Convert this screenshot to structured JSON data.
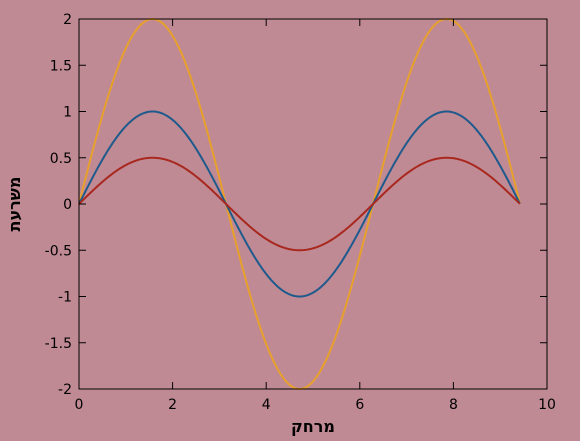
{
  "chart_data": {
    "type": "line",
    "title": "",
    "xlabel": "מרחק",
    "ylabel": "משרעת",
    "xlim": [
      0,
      10
    ],
    "ylim": [
      -2,
      2
    ],
    "xticks": [
      0,
      2,
      4,
      6,
      8,
      10
    ],
    "yticks": [
      -2,
      -1.5,
      -1,
      -0.5,
      0,
      0.5,
      1,
      1.5,
      2
    ],
    "xtick_labels": [
      "0",
      "2",
      "4",
      "6",
      "8",
      "10"
    ],
    "ytick_labels": [
      "-2",
      "-1.5",
      "-1",
      "-0.5",
      "0",
      "0.5",
      "1",
      "1.5",
      "2"
    ],
    "grid": false,
    "legend": false,
    "x_range": [
      0,
      9.42
    ],
    "series": [
      {
        "function": "sin",
        "amplitude": 2,
        "color": "#e8a02c"
      },
      {
        "function": "sin",
        "amplitude": 1,
        "color": "#1e5a8c"
      },
      {
        "function": "sin",
        "amplitude": 0.5,
        "color": "#a8281e"
      }
    ],
    "colors": {
      "background": "#c08a95",
      "axes": "#000000"
    }
  }
}
